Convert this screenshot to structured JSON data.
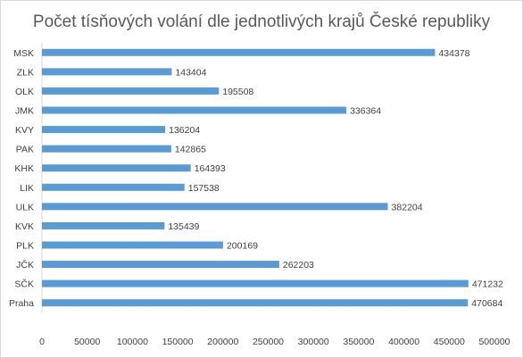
{
  "chart_data": {
    "type": "bar",
    "orientation": "horizontal",
    "title": "Počet tísňových volání dle jednotlivých krajů České republiky",
    "categories": [
      "MSK",
      "ZLK",
      "OLK",
      "JMK",
      "KVY",
      "PAK",
      "KHK",
      "LIK",
      "ULK",
      "KVK",
      "PLK",
      "JČK",
      "SČK",
      "Praha"
    ],
    "values": [
      434378,
      143404,
      195508,
      336364,
      136204,
      142865,
      164393,
      157538,
      382204,
      135439,
      200169,
      262203,
      471232,
      470684
    ],
    "xlim": [
      0,
      500000
    ],
    "xticks": [
      0,
      50000,
      100000,
      150000,
      200000,
      250000,
      300000,
      350000,
      400000,
      450000,
      500000
    ],
    "grid": false,
    "legend": "none",
    "data_labels": true,
    "bar_color": "#5b9bd5"
  }
}
